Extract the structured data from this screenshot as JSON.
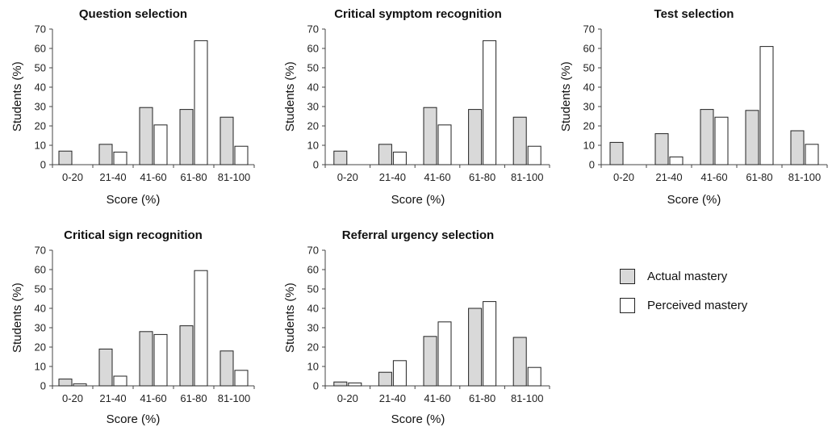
{
  "legend": [
    {
      "name": "Actual mastery",
      "color": "#d9d9d9"
    },
    {
      "name": "Perceived mastery",
      "color": "#ffffff"
    }
  ],
  "chart_data": [
    {
      "type": "bar",
      "title": "Question selection",
      "xlabel": "Score (%)",
      "ylabel": "Students (%)",
      "ylim": [
        0,
        70
      ],
      "yticks": [
        0,
        10,
        20,
        30,
        40,
        50,
        60,
        70
      ],
      "categories": [
        "0-20",
        "21-40",
        "41-60",
        "61-80",
        "81-100"
      ],
      "series": [
        {
          "name": "Actual mastery",
          "color": "#d9d9d9",
          "values": [
            7,
            10.5,
            29.5,
            28.5,
            24.5
          ]
        },
        {
          "name": "Perceived mastery",
          "color": "#ffffff",
          "values": [
            0,
            6.5,
            20.5,
            64,
            9.5
          ]
        }
      ]
    },
    {
      "type": "bar",
      "title": "Critical symptom recognition",
      "xlabel": "Score (%)",
      "ylabel": "Students (%)",
      "ylim": [
        0,
        70
      ],
      "yticks": [
        0,
        10,
        20,
        30,
        40,
        50,
        60,
        70
      ],
      "categories": [
        "0-20",
        "21-40",
        "41-60",
        "61-80",
        "81-100"
      ],
      "series": [
        {
          "name": "Actual mastery",
          "color": "#d9d9d9",
          "values": [
            7,
            10.5,
            29.5,
            28.5,
            24.5
          ]
        },
        {
          "name": "Perceived mastery",
          "color": "#ffffff",
          "values": [
            0,
            6.5,
            20.5,
            64,
            9.5
          ]
        }
      ]
    },
    {
      "type": "bar",
      "title": "Test selection",
      "xlabel": "Score (%)",
      "ylabel": "Students (%)",
      "ylim": [
        0,
        70
      ],
      "yticks": [
        0,
        10,
        20,
        30,
        40,
        50,
        60,
        70
      ],
      "categories": [
        "0-20",
        "21-40",
        "41-60",
        "61-80",
        "81-100"
      ],
      "series": [
        {
          "name": "Actual mastery",
          "color": "#d9d9d9",
          "values": [
            11.5,
            16,
            28.5,
            28,
            17.5
          ]
        },
        {
          "name": "Perceived mastery",
          "color": "#ffffff",
          "values": [
            0,
            4,
            24.5,
            61,
            10.5
          ]
        }
      ]
    },
    {
      "type": "bar",
      "title": "Critical sign recognition",
      "xlabel": "Score (%)",
      "ylabel": "Students (%)",
      "ylim": [
        0,
        70
      ],
      "yticks": [
        0,
        10,
        20,
        30,
        40,
        50,
        60,
        70
      ],
      "categories": [
        "0-20",
        "21-40",
        "41-60",
        "61-80",
        "81-100"
      ],
      "series": [
        {
          "name": "Actual mastery",
          "color": "#d9d9d9",
          "values": [
            3.5,
            19,
            28,
            31,
            18
          ]
        },
        {
          "name": "Perceived mastery",
          "color": "#ffffff",
          "values": [
            1,
            5,
            26.5,
            59.5,
            8
          ]
        }
      ]
    },
    {
      "type": "bar",
      "title": "Referral urgency selection",
      "xlabel": "Score (%)",
      "ylabel": "Students (%)",
      "ylim": [
        0,
        70
      ],
      "yticks": [
        0,
        10,
        20,
        30,
        40,
        50,
        60,
        70
      ],
      "categories": [
        "0-20",
        "21-40",
        "41-60",
        "61-80",
        "81-100"
      ],
      "series": [
        {
          "name": "Actual mastery",
          "color": "#d9d9d9",
          "values": [
            2,
            7,
            25.5,
            40,
            25
          ]
        },
        {
          "name": "Perceived mastery",
          "color": "#ffffff",
          "values": [
            1.5,
            13,
            33,
            43.5,
            9.5
          ]
        }
      ]
    }
  ]
}
